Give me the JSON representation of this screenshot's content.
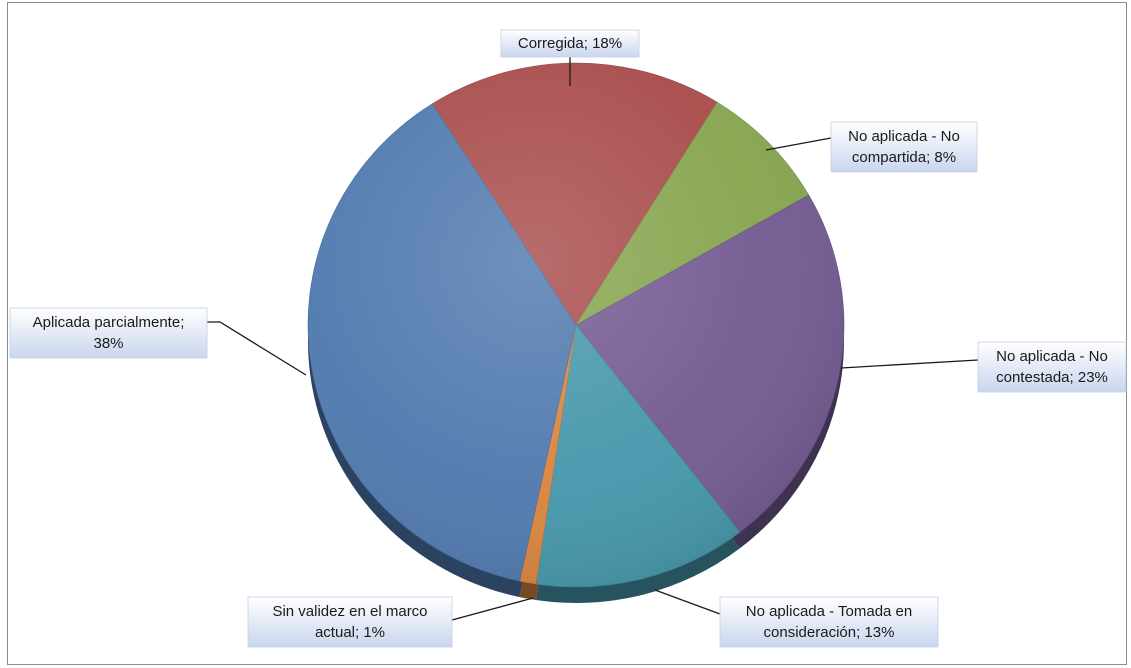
{
  "chart_data": {
    "type": "pie",
    "categories": [
      "Corregida",
      "No aplicada - No compartida",
      "No aplicada - No contestada",
      "No aplicada - Tomada en consideración",
      "Sin validez en el marco actual",
      "Aplicada parcialmente"
    ],
    "values": [
      18,
      8,
      23,
      13,
      1,
      38
    ],
    "unit": "%",
    "colors": [
      "#a84c4b",
      "#86a54e",
      "#735a91",
      "#4597ab",
      "#d9843e",
      "#4f79ae"
    ],
    "data_labels": [
      [
        "Corregida; 18%"
      ],
      [
        "No aplicada - No",
        "compartida; 8%"
      ],
      [
        "No aplicada - No",
        "contestada; 23%"
      ],
      [
        "No aplicada - Tomada en",
        "consideración; 13%"
      ],
      [
        "Sin validez en el marco",
        "actual; 1%"
      ],
      [
        "Aplicada parcialmente;",
        "38%"
      ]
    ],
    "style": "3d-pie",
    "legend": "none"
  }
}
